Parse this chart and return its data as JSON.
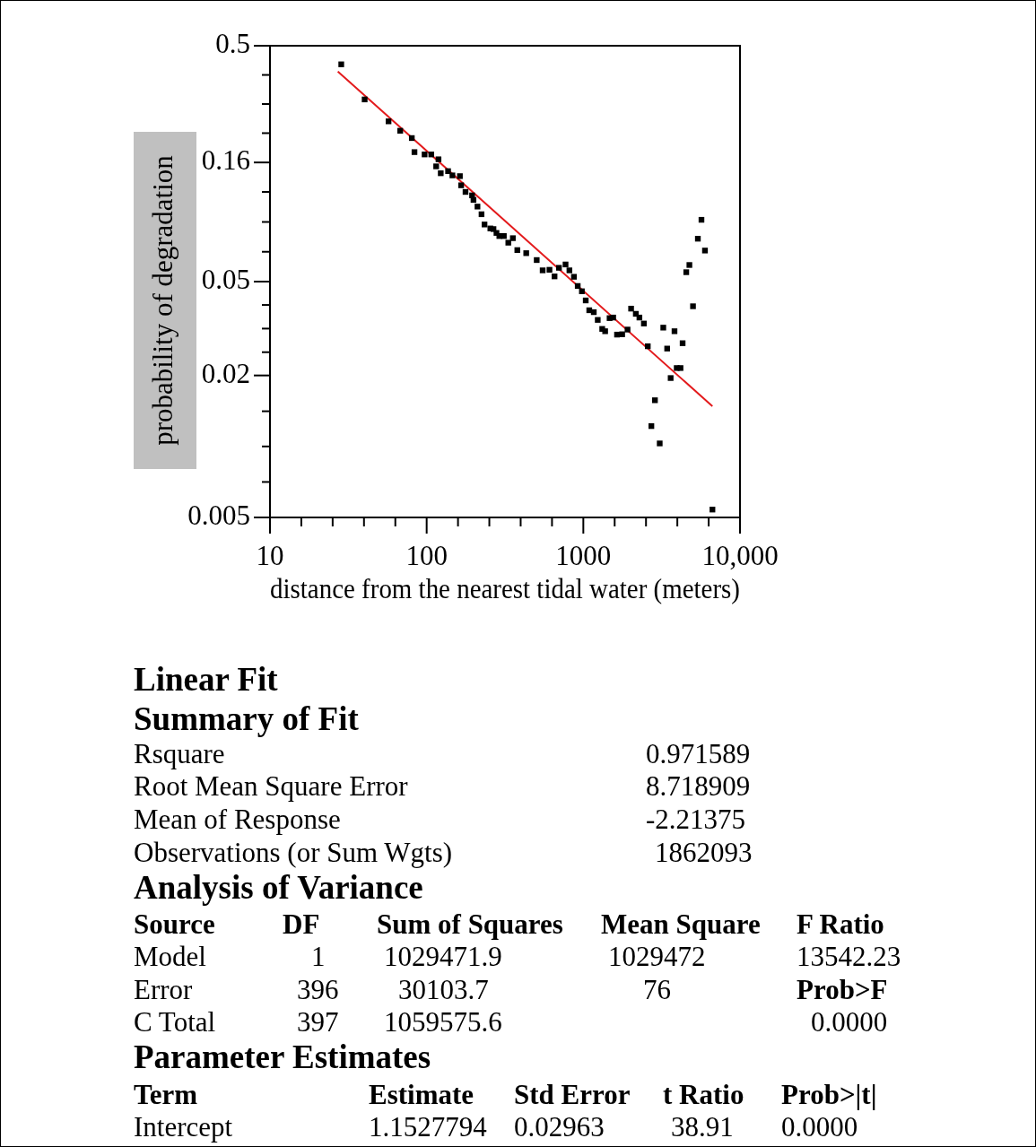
{
  "chart_data": {
    "type": "scatter",
    "xlabel": "distance from the nearest tidal water (meters)",
    "ylabel": "probability of degradation",
    "log": "xy",
    "xlim": [
      10,
      10000
    ],
    "xticks": [
      10,
      {
        "value": 15.85,
        "label": null
      },
      {
        "value": 25.12,
        "label": null
      },
      {
        "value": 39.81,
        "label": null
      },
      {
        "value": 63.1,
        "label": null
      },
      100,
      {
        "value": 158.5,
        "label": null
      },
      {
        "value": 251.2,
        "label": null
      },
      {
        "value": 398.1,
        "label": null
      },
      {
        "value": 631,
        "label": null
      },
      1000,
      {
        "value": 1585,
        "label": null
      },
      {
        "value": 2512,
        "label": null
      },
      {
        "value": 3981,
        "label": null
      },
      {
        "value": 6310,
        "label": null
      },
      {
        "value": 10000,
        "label": "10,000"
      }
    ],
    "ylim": [
      0.005,
      0.5
    ],
    "yticks": [
      0.5,
      {
        "value": 0.376,
        "label": null
      },
      {
        "value": 0.283,
        "label": null
      },
      {
        "value": 0.213,
        "label": null
      },
      0.16,
      {
        "value": 0.12,
        "label": null
      },
      {
        "value": 0.0895,
        "label": null
      },
      {
        "value": 0.0669,
        "label": null
      },
      0.05,
      {
        "value": 0.0398,
        "label": null
      },
      {
        "value": 0.0316,
        "label": null
      },
      {
        "value": 0.0251,
        "label": null
      },
      0.02,
      {
        "value": 0.0141,
        "label": null
      },
      {
        "value": 0.01,
        "label": null
      },
      {
        "value": 0.00707,
        "label": null
      },
      0.005
    ],
    "series": [
      {
        "type": "scatter",
        "color": "#000000",
        "marker": "square",
        "x": [
          28.5,
          40.2,
          57.1,
          67.8,
          80.4,
          83.6,
          97,
          107,
          119,
          115,
          123,
          137,
          146,
          163,
          166,
          177,
          195,
          199,
          211,
          224,
          234,
          255,
          279,
          291,
          267,
          311,
          332,
          355,
          379,
          432,
          504,
          550,
          608,
          655,
          699,
          770,
          815,
          871,
          921,
          979,
          1036,
          1091,
          1166,
          1236,
          1320,
          1378,
          1471,
          1551,
          1641,
          1770,
          1915,
          2018,
          2163,
          2280,
          2435,
          2579,
          2718,
          2865,
          3073,
          3238,
          3428,
          3609,
          3819,
          3945,
          4171,
          4303,
          4539,
          4753,
          5012,
          5383,
          5675,
          5976,
          6668
        ],
        "values": [
          0.417,
          0.296,
          0.239,
          0.218,
          0.203,
          0.177,
          0.173,
          0.173,
          0.165,
          0.154,
          0.144,
          0.147,
          0.141,
          0.14,
          0.128,
          0.12,
          0.116,
          0.111,
          0.104,
          0.0965,
          0.0873,
          0.084,
          0.0804,
          0.078,
          0.0835,
          0.078,
          0.0731,
          0.0764,
          0.068,
          0.066,
          0.0617,
          0.0558,
          0.0561,
          0.0526,
          0.0572,
          0.0591,
          0.0558,
          0.0524,
          0.0479,
          0.0455,
          0.0416,
          0.0378,
          0.0371,
          0.0344,
          0.0315,
          0.0308,
          0.035,
          0.0352,
          0.0298,
          0.0299,
          0.0313,
          0.0384,
          0.0365,
          0.0352,
          0.0332,
          0.0266,
          0.0122,
          0.0157,
          0.0103,
          0.0319,
          0.026,
          0.0195,
          0.0308,
          0.0215,
          0.0215,
          0.0274,
          0.0548,
          0.0588,
          0.0393,
          0.076,
          0.0914,
          0.0677,
          0.0054
        ]
      },
      {
        "type": "line",
        "color": "#e31a1c",
        "marker": "none",
        "x": [
          27.1,
          6668
        ],
        "values": [
          0.389,
          0.0148
        ]
      }
    ],
    "annotations": [
      "Linear Fit",
      "Summary of Fit",
      "Rsquare",
      "0.971589",
      "Root Mean Square Error",
      "8.718909",
      "Mean of Response",
      "-2.21375",
      "Observations (or Sum Wgts)",
      "1862093",
      "Analysis of Variance",
      "Source",
      "DF",
      "Sum of Squares",
      "Mean Square",
      "F Ratio",
      "Model",
      "1",
      "1029471.9",
      "1029472",
      "13542.23",
      "Error",
      "396",
      "30103.7",
      "76",
      "Prob>F",
      "C Total",
      "397",
      "1059575.6",
      "0.0000",
      "Parameter Estimates",
      "Term",
      "Estimate",
      "Std Error",
      "t Ratio",
      "Prob>|t|",
      "Intercept",
      "1.1527794",
      "0.02963",
      "38.91",
      "0.0000"
    ]
  }
}
